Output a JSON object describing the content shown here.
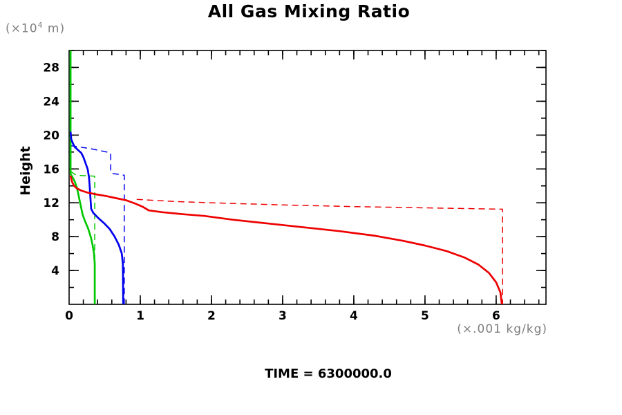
{
  "title": "All Gas Mixing Ratio",
  "y_axis_unit": {
    "prefix": "(×10",
    "sup": "4",
    "suffix": " m)"
  },
  "y_axis_title": "Height",
  "x_axis_unit": "(×.001 kg/kg)",
  "time_label": "TIME = 6300000.0",
  "colors": {
    "red": "#ee0000",
    "green": "#00c800",
    "blue": "#0000ee",
    "axis": "#000000",
    "unit_text": "#7f7f7f"
  },
  "chart_data": {
    "type": "line",
    "title": "All Gas Mixing Ratio",
    "xlabel": "(×.001 kg/kg)",
    "ylabel": "Height (×10^4 m)",
    "annotation": "TIME = 6300000.0",
    "xlim": [
      0,
      6.7
    ],
    "ylim": [
      0,
      30
    ],
    "grid": false,
    "legend": "none",
    "x_ticks": {
      "major": [
        0,
        1,
        2,
        3,
        4,
        5,
        6
      ],
      "labels": [
        "0",
        "1",
        "2",
        "3",
        "4",
        "5",
        "6"
      ],
      "minor_step": 0.2
    },
    "y_ticks": {
      "major": [
        4,
        8,
        12,
        16,
        20,
        24,
        28
      ],
      "labels": [
        "4",
        "8",
        "12",
        "16",
        "20",
        "24",
        "28"
      ],
      "minor_step": 2
    },
    "series": [
      {
        "name": "green-dashed",
        "color": "#00c800",
        "style": "dashed",
        "points": [
          [
            0.02,
            15.7
          ],
          [
            0.1,
            15.25
          ],
          [
            0.36,
            15.15
          ],
          [
            0.36,
            0
          ]
        ]
      },
      {
        "name": "blue-dashed",
        "color": "#0000ee",
        "style": "dashed",
        "points": [
          [
            0.02,
            18.75
          ],
          [
            0.3,
            18.4
          ],
          [
            0.5,
            18.05
          ],
          [
            0.57,
            17.95
          ],
          [
            0.585,
            17.8
          ],
          [
            0.585,
            15.6
          ],
          [
            0.61,
            15.45
          ],
          [
            0.72,
            15.35
          ],
          [
            0.775,
            15.25
          ],
          [
            0.775,
            0
          ]
        ]
      },
      {
        "name": "red-dashed",
        "color": "#ee0000",
        "style": "dashed",
        "points": [
          [
            0.95,
            12.4
          ],
          [
            1.5,
            12.15
          ],
          [
            2.0,
            12.0
          ],
          [
            3.0,
            11.75
          ],
          [
            4.0,
            11.55
          ],
          [
            5.0,
            11.4
          ],
          [
            6.09,
            11.25
          ],
          [
            6.09,
            0
          ]
        ]
      },
      {
        "name": "green-solid",
        "color": "#00c800",
        "style": "solid",
        "points": [
          [
            0.02,
            30
          ],
          [
            0.02,
            15.4
          ],
          [
            0.05,
            15.0
          ],
          [
            0.08,
            14.5
          ],
          [
            0.11,
            13.8
          ],
          [
            0.13,
            13.0
          ],
          [
            0.15,
            12.2
          ],
          [
            0.17,
            11.4
          ],
          [
            0.19,
            10.6
          ],
          [
            0.22,
            9.9
          ],
          [
            0.27,
            8.9
          ],
          [
            0.31,
            7.8
          ],
          [
            0.33,
            7.0
          ],
          [
            0.35,
            6.0
          ],
          [
            0.36,
            4.8
          ],
          [
            0.36,
            0
          ]
        ]
      },
      {
        "name": "blue-solid",
        "color": "#0000ee",
        "style": "solid",
        "points": [
          [
            0.02,
            20.4
          ],
          [
            0.03,
            19.5
          ],
          [
            0.06,
            18.9
          ],
          [
            0.08,
            18.6
          ],
          [
            0.13,
            18.2
          ],
          [
            0.17,
            17.9
          ],
          [
            0.2,
            17.4
          ],
          [
            0.23,
            16.7
          ],
          [
            0.26,
            16.0
          ],
          [
            0.28,
            15.0
          ],
          [
            0.29,
            13.8
          ],
          [
            0.3,
            12.5
          ],
          [
            0.31,
            11.3
          ],
          [
            0.34,
            10.8
          ],
          [
            0.41,
            10.2
          ],
          [
            0.49,
            9.6
          ],
          [
            0.57,
            8.9
          ],
          [
            0.64,
            8.0
          ],
          [
            0.7,
            7.0
          ],
          [
            0.74,
            6.0
          ],
          [
            0.755,
            4.8
          ],
          [
            0.76,
            0
          ]
        ]
      },
      {
        "name": "red-solid",
        "color": "#ee0000",
        "style": "solid",
        "points": [
          [
            0.02,
            15.2
          ],
          [
            0.04,
            14.5
          ],
          [
            0.07,
            14.0
          ],
          [
            0.11,
            13.7
          ],
          [
            0.17,
            13.45
          ],
          [
            0.26,
            13.2
          ],
          [
            0.38,
            13.0
          ],
          [
            0.52,
            12.8
          ],
          [
            0.66,
            12.55
          ],
          [
            0.8,
            12.3
          ],
          [
            0.93,
            11.9
          ],
          [
            1.04,
            11.5
          ],
          [
            1.12,
            11.1
          ],
          [
            1.3,
            10.9
          ],
          [
            1.6,
            10.65
          ],
          [
            1.9,
            10.45
          ],
          [
            2.3,
            10.0
          ],
          [
            2.8,
            9.55
          ],
          [
            3.3,
            9.1
          ],
          [
            3.8,
            8.65
          ],
          [
            4.3,
            8.1
          ],
          [
            4.7,
            7.5
          ],
          [
            5.0,
            6.95
          ],
          [
            5.3,
            6.3
          ],
          [
            5.55,
            5.55
          ],
          [
            5.75,
            4.7
          ],
          [
            5.9,
            3.7
          ],
          [
            6.0,
            2.6
          ],
          [
            6.06,
            1.4
          ],
          [
            6.08,
            0
          ]
        ]
      }
    ]
  }
}
